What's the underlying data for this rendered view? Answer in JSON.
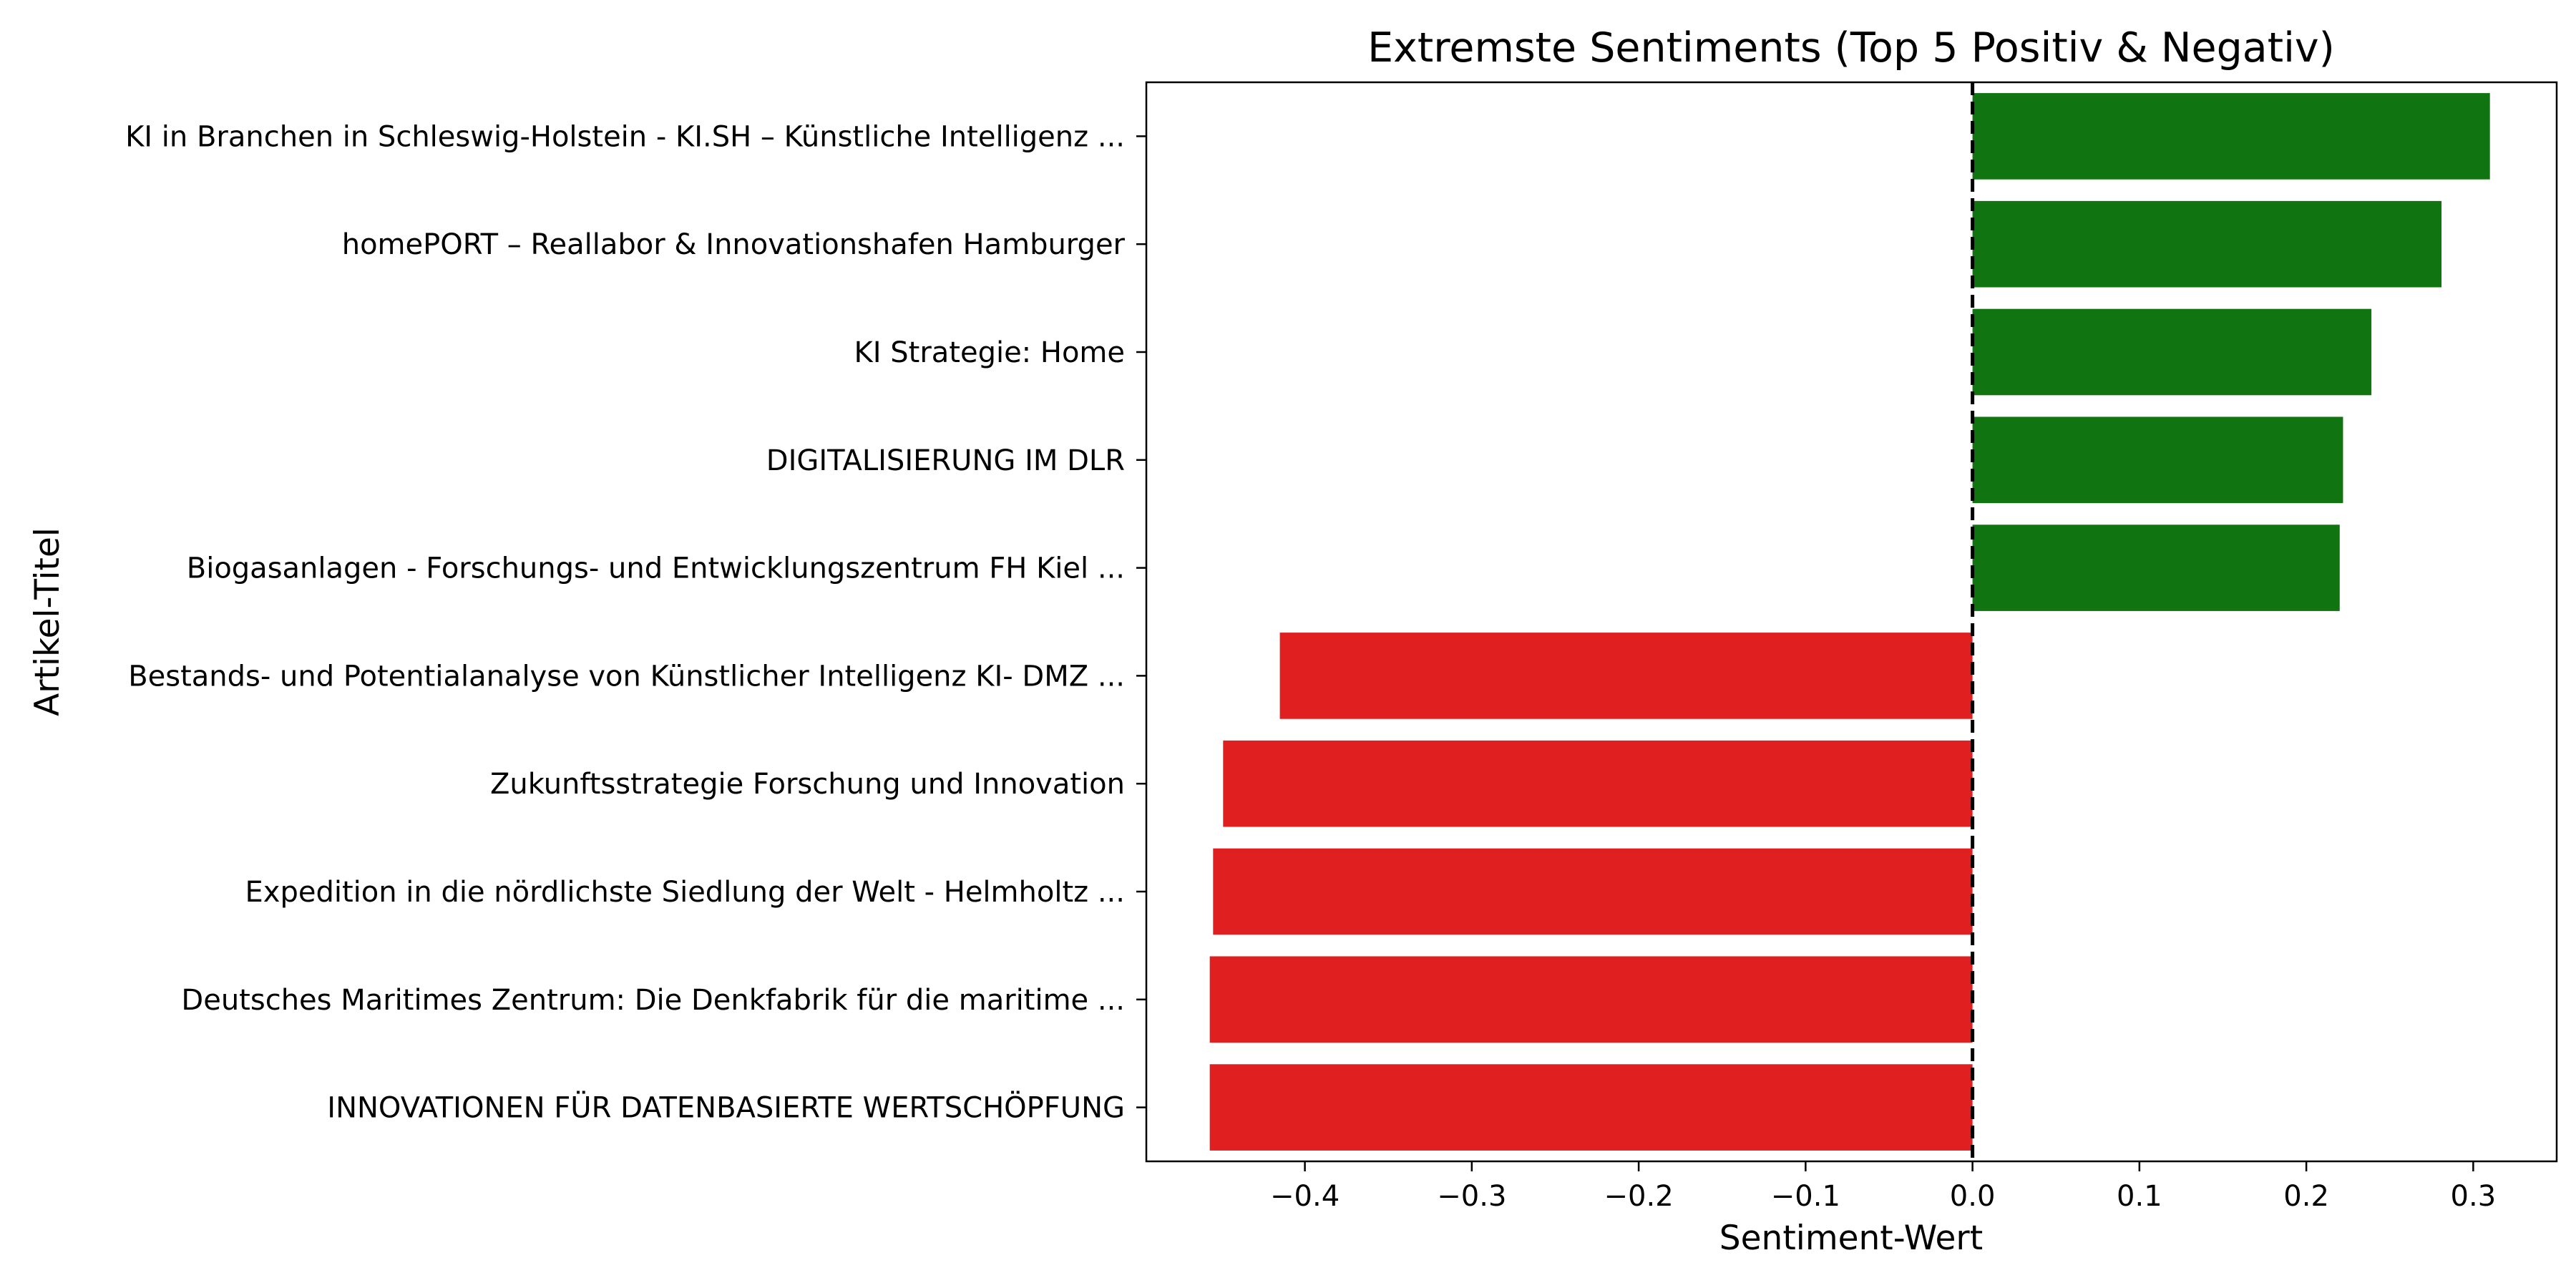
{
  "chart_data": {
    "type": "bar",
    "orientation": "horizontal",
    "title": "Extremste Sentiments (Top 5 Positiv & Negativ)",
    "xlabel": "Sentiment-Wert",
    "ylabel": "Artikel-Titel",
    "xlim": [
      -0.495,
      0.35
    ],
    "xticks": [
      -0.4,
      -0.3,
      -0.2,
      -0.1,
      0.0,
      0.1,
      0.2,
      0.3
    ],
    "xtick_labels": [
      "−0.4",
      "−0.3",
      "−0.2",
      "−0.1",
      "0.0",
      "0.1",
      "0.2",
      "0.3"
    ],
    "reference_line": {
      "x": 0.0,
      "style": "dashed",
      "color": "#000000"
    },
    "grid": false,
    "categories": [
      "KI in Branchen in Schleswig-Holstein - KI.SH – Künstliche Intelligenz ...",
      "homePORT – Reallabor & Innovationshafen Hamburger",
      "KI Strategie: Home",
      "DIGITALISIERUNG IM DLR",
      "Biogasanlagen - Forschungs- und Entwicklungszentrum FH Kiel ...",
      "Bestands- und Potentialanalyse von Künstlicher Intelligenz KI- DMZ ...",
      "Zukunftsstrategie Forschung und Innovation",
      "Expedition in die nördlichste Siedlung der Welt - Helmholtz ...",
      "Deutsches Maritimes Zentrum: Die Denkfabrik für die maritime ...",
      "INNOVATIONEN FÜR DATENBASIERTE WERTSCHÖPFUNG"
    ],
    "values": [
      0.31,
      0.281,
      0.239,
      0.222,
      0.22,
      -0.415,
      -0.449,
      -0.455,
      -0.457,
      -0.457
    ],
    "colors": {
      "positive": "#107510",
      "negative": "#e02020"
    }
  }
}
